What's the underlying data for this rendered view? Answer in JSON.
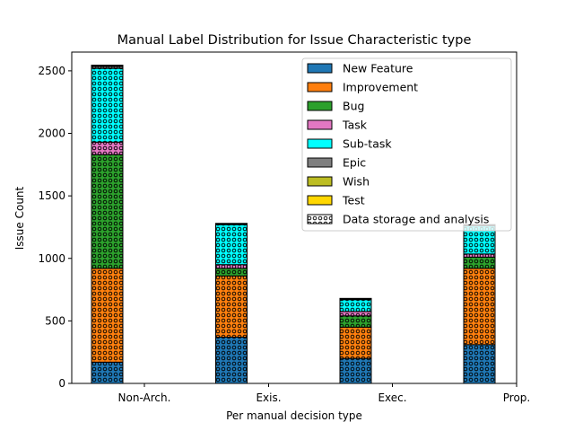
{
  "chart_data": {
    "type": "bar",
    "stacked": true,
    "title": "Manual Label Distribution for Issue Characteristic type",
    "xlabel": "Per manual decision type",
    "ylabel": "Issue Count",
    "ylim": [
      0,
      2650
    ],
    "yticks": [
      0,
      500,
      1000,
      1500,
      2000,
      2500
    ],
    "categories": [
      "Non-Arch.",
      "Exis.",
      "Exec.",
      "Prop."
    ],
    "pattern_series": "Data storage and analysis",
    "legend_position": "top-right",
    "series": [
      {
        "name": "New Feature",
        "color": "#1f77b4",
        "values": [
          170,
          370,
          200,
          310
        ]
      },
      {
        "name": "Improvement",
        "color": "#ff7f0e",
        "values": [
          750,
          490,
          250,
          610
        ]
      },
      {
        "name": "Bug",
        "color": "#2ca02c",
        "values": [
          910,
          60,
          90,
          90
        ]
      },
      {
        "name": "Task",
        "color": "#e377c2",
        "values": [
          100,
          30,
          35,
          25
        ]
      },
      {
        "name": "Sub-task",
        "color": "#00ffff",
        "values": [
          590,
          320,
          95,
          225
        ]
      },
      {
        "name": "Epic",
        "color": "#7f7f7f",
        "values": [
          15,
          5,
          3,
          5
        ]
      },
      {
        "name": "Wish",
        "color": "#bcbd22",
        "values": [
          5,
          2,
          2,
          2
        ]
      },
      {
        "name": "Test",
        "color": "#ffd700",
        "values": [
          5,
          3,
          5,
          3
        ]
      }
    ]
  }
}
